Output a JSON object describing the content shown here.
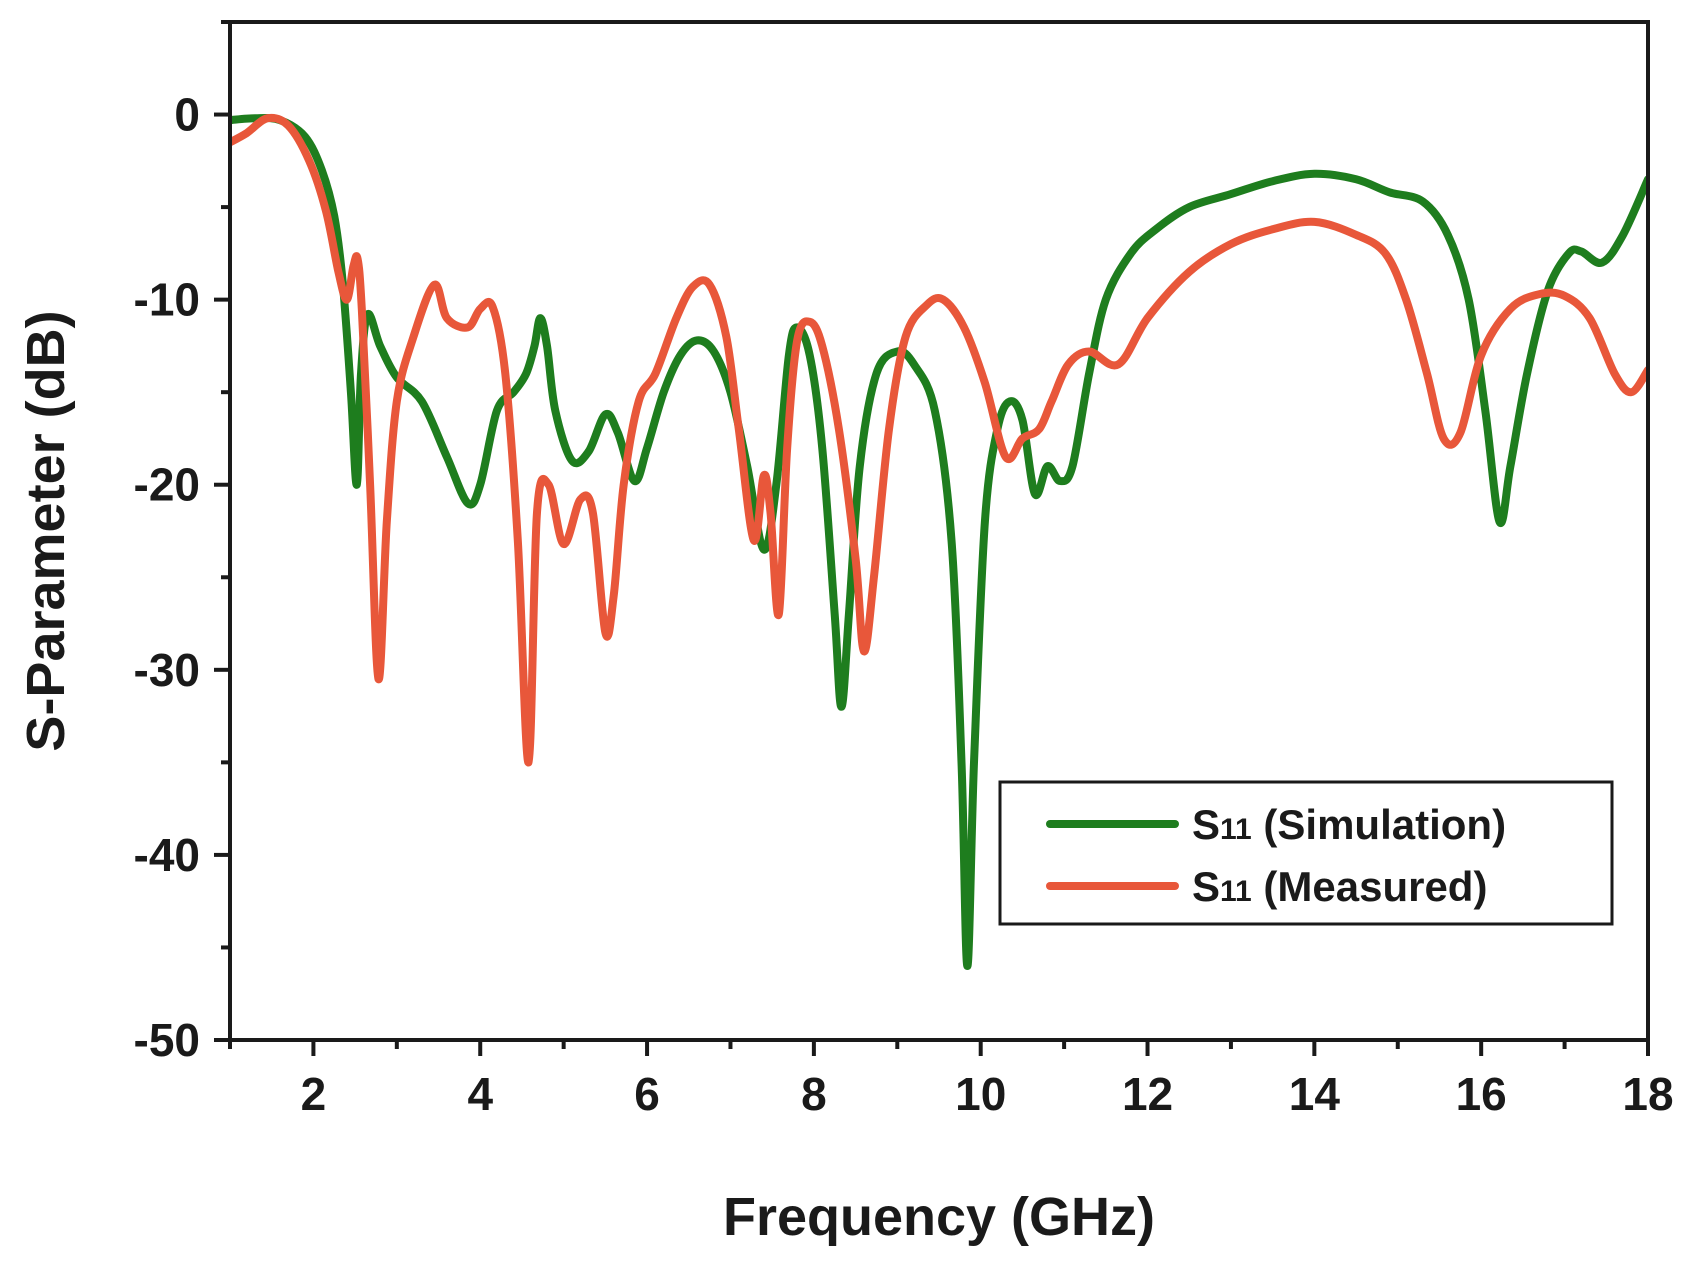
{
  "chart_data": {
    "type": "line",
    "title": "",
    "xlabel": "Frequency (GHz)",
    "ylabel": "S-Parameter (dB)",
    "xlim": [
      1,
      18
    ],
    "ylim": [
      -50,
      5
    ],
    "x_ticks": [
      2,
      4,
      6,
      8,
      10,
      12,
      14,
      16,
      18
    ],
    "x_tick_labels": [
      "2",
      "4",
      "6",
      "8",
      "10",
      "12",
      "14",
      "16",
      "18"
    ],
    "y_ticks": [
      0,
      -10,
      -20,
      -30,
      -40,
      -50
    ],
    "y_tick_labels": [
      "0",
      "-10",
      "-20",
      "-30",
      "-40",
      "-50"
    ],
    "legend_position": "bottom-right",
    "series": [
      {
        "name": "S11 (Simulation)",
        "legend_main": "S",
        "legend_sub": "11",
        "legend_rest": " (Simulation)",
        "color": "#1e7d1e",
        "points": [
          [
            1.0,
            -0.3
          ],
          [
            1.3,
            -0.2
          ],
          [
            1.6,
            -0.3
          ],
          [
            1.9,
            -1.2
          ],
          [
            2.1,
            -3
          ],
          [
            2.25,
            -5.5
          ],
          [
            2.35,
            -9
          ],
          [
            2.45,
            -15
          ],
          [
            2.52,
            -20
          ],
          [
            2.57,
            -14
          ],
          [
            2.65,
            -10.8
          ],
          [
            2.8,
            -12.5
          ],
          [
            3.0,
            -14.2
          ],
          [
            3.3,
            -15.5
          ],
          [
            3.6,
            -18.5
          ],
          [
            3.85,
            -21
          ],
          [
            4.0,
            -20
          ],
          [
            4.2,
            -16
          ],
          [
            4.4,
            -15
          ],
          [
            4.55,
            -14
          ],
          [
            4.65,
            -12.5
          ],
          [
            4.72,
            -11
          ],
          [
            4.8,
            -12.5
          ],
          [
            4.9,
            -16
          ],
          [
            5.1,
            -18.7
          ],
          [
            5.3,
            -18.2
          ],
          [
            5.5,
            -16.2
          ],
          [
            5.65,
            -17.2
          ],
          [
            5.85,
            -19.8
          ],
          [
            6.0,
            -18
          ],
          [
            6.2,
            -15
          ],
          [
            6.4,
            -13
          ],
          [
            6.6,
            -12.2
          ],
          [
            6.8,
            -12.8
          ],
          [
            7.0,
            -15
          ],
          [
            7.2,
            -19
          ],
          [
            7.4,
            -23.5
          ],
          [
            7.55,
            -20
          ],
          [
            7.7,
            -13
          ],
          [
            7.8,
            -11.5
          ],
          [
            7.95,
            -13
          ],
          [
            8.1,
            -18
          ],
          [
            8.25,
            -27
          ],
          [
            8.33,
            -32
          ],
          [
            8.42,
            -27
          ],
          [
            8.55,
            -19
          ],
          [
            8.75,
            -14
          ],
          [
            9.0,
            -12.8
          ],
          [
            9.2,
            -13.5
          ],
          [
            9.45,
            -16
          ],
          [
            9.65,
            -23
          ],
          [
            9.77,
            -35
          ],
          [
            9.84,
            -46
          ],
          [
            9.92,
            -35
          ],
          [
            10.05,
            -22
          ],
          [
            10.2,
            -17
          ],
          [
            10.35,
            -15.5
          ],
          [
            10.5,
            -16.5
          ],
          [
            10.65,
            -20.5
          ],
          [
            10.8,
            -19
          ],
          [
            10.95,
            -19.8
          ],
          [
            11.1,
            -19
          ],
          [
            11.3,
            -14
          ],
          [
            11.5,
            -10
          ],
          [
            11.8,
            -7.5
          ],
          [
            12.1,
            -6.2
          ],
          [
            12.5,
            -5
          ],
          [
            13.0,
            -4.3
          ],
          [
            13.5,
            -3.6
          ],
          [
            14.0,
            -3.2
          ],
          [
            14.5,
            -3.5
          ],
          [
            14.9,
            -4.2
          ],
          [
            15.3,
            -4.7
          ],
          [
            15.6,
            -6.5
          ],
          [
            15.85,
            -10
          ],
          [
            16.05,
            -16
          ],
          [
            16.22,
            -22
          ],
          [
            16.35,
            -19
          ],
          [
            16.55,
            -14
          ],
          [
            16.8,
            -9.5
          ],
          [
            17.05,
            -7.5
          ],
          [
            17.2,
            -7.4
          ],
          [
            17.45,
            -8
          ],
          [
            17.7,
            -6.5
          ],
          [
            18.0,
            -3.5
          ]
        ]
      },
      {
        "name": "S11 (Measured)",
        "legend_main": "S",
        "legend_sub": "11",
        "legend_rest": " (Measured)",
        "color": "#e8573a",
        "points": [
          [
            1.0,
            -1.5
          ],
          [
            1.2,
            -1.0
          ],
          [
            1.45,
            -0.2
          ],
          [
            1.7,
            -0.6
          ],
          [
            1.95,
            -2.5
          ],
          [
            2.15,
            -5.2
          ],
          [
            2.3,
            -8.5
          ],
          [
            2.4,
            -10
          ],
          [
            2.48,
            -8.2
          ],
          [
            2.53,
            -7.8
          ],
          [
            2.58,
            -10.5
          ],
          [
            2.68,
            -20
          ],
          [
            2.78,
            -30.5
          ],
          [
            2.88,
            -22
          ],
          [
            3.0,
            -15.5
          ],
          [
            3.2,
            -12
          ],
          [
            3.45,
            -9.2
          ],
          [
            3.6,
            -11
          ],
          [
            3.85,
            -11.5
          ],
          [
            4.0,
            -10.5
          ],
          [
            4.15,
            -10.4
          ],
          [
            4.3,
            -14
          ],
          [
            4.45,
            -23
          ],
          [
            4.58,
            -35
          ],
          [
            4.68,
            -21.5
          ],
          [
            4.82,
            -20
          ],
          [
            5.0,
            -23.2
          ],
          [
            5.2,
            -20.8
          ],
          [
            5.35,
            -21.5
          ],
          [
            5.5,
            -28
          ],
          [
            5.6,
            -26
          ],
          [
            5.72,
            -20
          ],
          [
            5.9,
            -15.5
          ],
          [
            6.1,
            -14
          ],
          [
            6.35,
            -11
          ],
          [
            6.55,
            -9.3
          ],
          [
            6.75,
            -9.2
          ],
          [
            6.95,
            -12
          ],
          [
            7.1,
            -17
          ],
          [
            7.28,
            -23
          ],
          [
            7.4,
            -19.5
          ],
          [
            7.48,
            -21.5
          ],
          [
            7.58,
            -27
          ],
          [
            7.68,
            -18
          ],
          [
            7.8,
            -12.2
          ],
          [
            7.95,
            -11.2
          ],
          [
            8.1,
            -12.5
          ],
          [
            8.3,
            -17
          ],
          [
            8.5,
            -24
          ],
          [
            8.6,
            -29
          ],
          [
            8.72,
            -25
          ],
          [
            8.9,
            -17
          ],
          [
            9.1,
            -12
          ],
          [
            9.35,
            -10.3
          ],
          [
            9.55,
            -10
          ],
          [
            9.8,
            -11.5
          ],
          [
            10.05,
            -14.5
          ],
          [
            10.3,
            -18.5
          ],
          [
            10.5,
            -17.5
          ],
          [
            10.7,
            -17
          ],
          [
            10.85,
            -15.5
          ],
          [
            11.05,
            -13.5
          ],
          [
            11.3,
            -12.8
          ],
          [
            11.65,
            -13.5
          ],
          [
            12.0,
            -11
          ],
          [
            12.5,
            -8.5
          ],
          [
            13.0,
            -7
          ],
          [
            13.5,
            -6.2
          ],
          [
            14.0,
            -5.8
          ],
          [
            14.5,
            -6.5
          ],
          [
            14.85,
            -7.5
          ],
          [
            15.1,
            -10
          ],
          [
            15.35,
            -14
          ],
          [
            15.55,
            -17.5
          ],
          [
            15.75,
            -17.2
          ],
          [
            16.0,
            -13
          ],
          [
            16.35,
            -10.5
          ],
          [
            16.7,
            -9.7
          ],
          [
            17.0,
            -9.8
          ],
          [
            17.3,
            -11
          ],
          [
            17.6,
            -14
          ],
          [
            17.8,
            -15
          ],
          [
            18.0,
            -13.8
          ]
        ]
      }
    ]
  }
}
